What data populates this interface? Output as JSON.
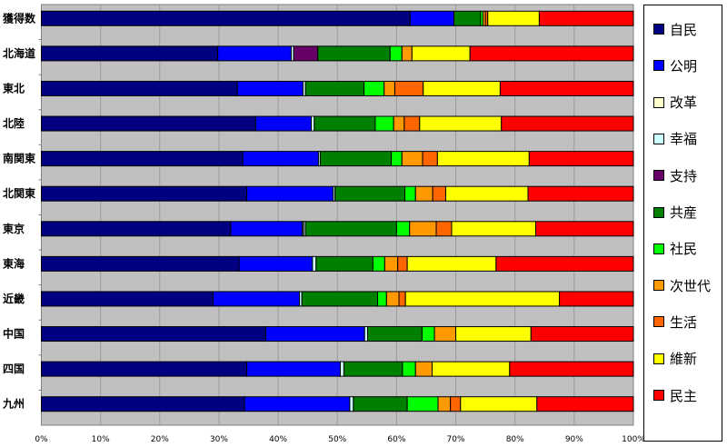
{
  "chart_data": {
    "type": "bar",
    "orientation": "horizontal",
    "stacked": "percent",
    "title": "",
    "xlabel": "",
    "ylabel": "",
    "xlim": [
      0,
      100
    ],
    "x_ticks": [
      "0%",
      "10%",
      "20%",
      "30%",
      "40%",
      "50%",
      "60%",
      "70%",
      "80%",
      "90%",
      "100%"
    ],
    "grid": "vertical",
    "legend_position": "right",
    "categories": [
      "獲得数",
      "北海道",
      "東北",
      "北陸",
      "南関東",
      "北関東",
      "東京",
      "東海",
      "近畿",
      "中国",
      "四国",
      "九州"
    ],
    "series": [
      {
        "name": "自民",
        "color": "#000080",
        "values": [
          62.3,
          29.8,
          33.1,
          36.2,
          34.0,
          34.7,
          32.0,
          33.4,
          29.0,
          37.9,
          34.7,
          34.3
        ]
      },
      {
        "name": "公明",
        "color": "#0000ff",
        "values": [
          7.4,
          12.4,
          11.1,
          9.4,
          12.8,
          14.6,
          12.1,
          12.4,
          14.6,
          16.7,
          15.8,
          17.8
        ]
      },
      {
        "name": "改革",
        "color": "#ffffcc",
        "values": [
          0,
          0,
          0,
          0,
          0,
          0,
          0.2,
          0,
          0,
          0,
          0,
          0
        ]
      },
      {
        "name": "幸福",
        "color": "#ccffff",
        "values": [
          0,
          0.4,
          0.4,
          0.5,
          0.3,
          0.3,
          0.3,
          0.6,
          0.4,
          0.5,
          0.6,
          0.6
        ]
      },
      {
        "name": "支持",
        "color": "#660066",
        "values": [
          0,
          4.1,
          0,
          0,
          0,
          0,
          0,
          0,
          0,
          0,
          0,
          0
        ]
      },
      {
        "name": "共産",
        "color": "#008000",
        "values": [
          4.5,
          12.2,
          9.9,
          10.3,
          12.0,
          11.8,
          15.4,
          9.6,
          12.8,
          9.2,
          9.9,
          9.1
        ]
      },
      {
        "name": "社民",
        "color": "#00ff00",
        "values": [
          0.4,
          2.0,
          3.4,
          3.1,
          1.8,
          1.8,
          2.2,
          2.0,
          1.5,
          2.1,
          2.2,
          5.2
        ]
      },
      {
        "name": "次世代",
        "color": "#ff9900",
        "values": [
          0.4,
          1.7,
          1.8,
          1.8,
          3.5,
          2.9,
          4.5,
          2.2,
          2.1,
          3.6,
          2.8,
          2.1
        ]
      },
      {
        "name": "生活",
        "color": "#ff6600",
        "values": [
          0.4,
          0,
          4.8,
          2.6,
          2.5,
          2.2,
          2.6,
          1.6,
          1.1,
          0,
          0,
          1.7
        ]
      },
      {
        "name": "維新",
        "color": "#ffff00",
        "values": [
          8.7,
          9.8,
          13.0,
          13.8,
          15.5,
          13.9,
          14.2,
          15.0,
          26.0,
          12.7,
          13.1,
          12.9
        ]
      },
      {
        "name": "民主",
        "color": "#ff0000",
        "values": [
          15.9,
          27.6,
          22.5,
          22.3,
          17.6,
          17.8,
          16.5,
          23.2,
          12.5,
          17.3,
          20.9,
          16.3
        ]
      }
    ]
  }
}
